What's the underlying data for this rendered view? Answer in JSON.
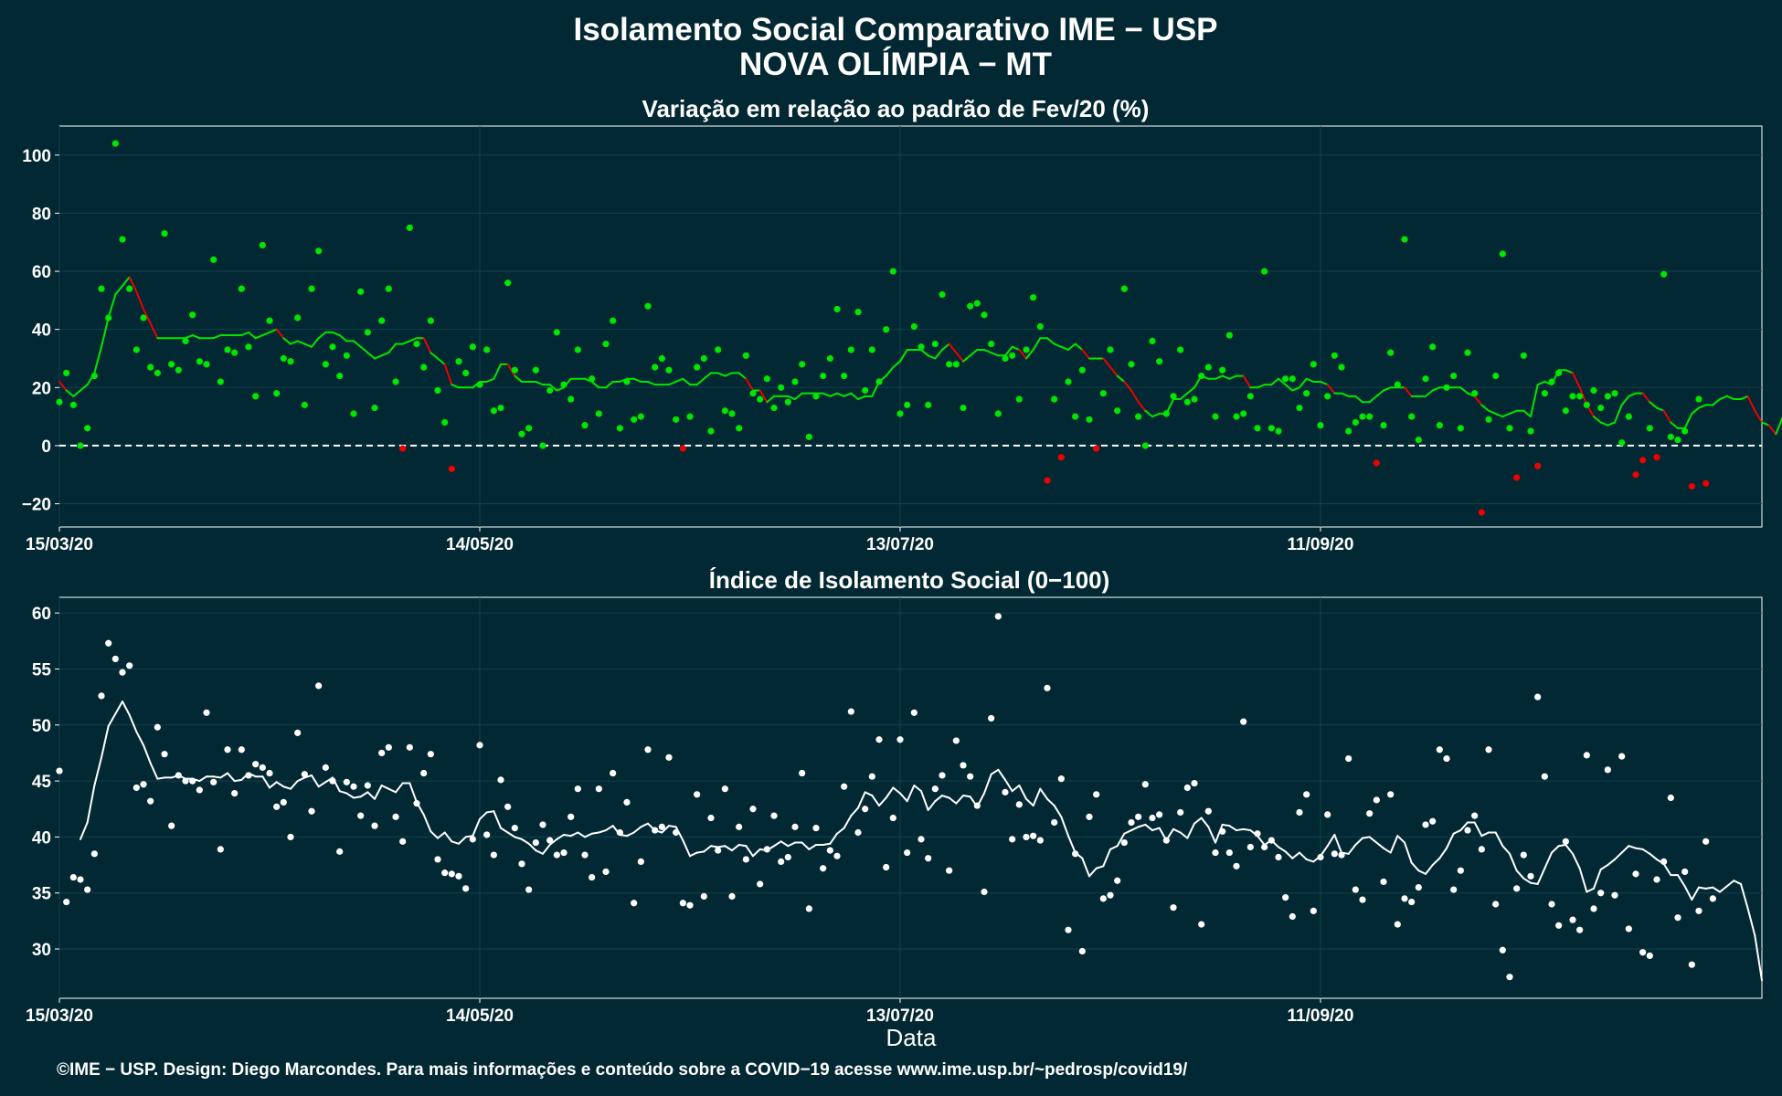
{
  "header": {
    "title": "Isolamento Social Comparativo IME − USP",
    "subtitle": "NOVA OLÍMPIA − MT"
  },
  "footer": "©IME − USP. Design: Diego Marcondes. Para mais informações e conteúdo sobre a COVID−19 acesse www.ime.usp.br/~pedrosp/covid19/",
  "colors": {
    "background": "#022833",
    "positive": "#00e600",
    "negative": "#ee0000",
    "index": "#ffffff",
    "grid": "#11404d"
  },
  "chart_data": [
    {
      "type": "scatter",
      "title": "Variação em relação ao padrão de Fev/20 (%)",
      "xlabel": "",
      "ylabel": "",
      "xlim": [
        "2020-03-15",
        "2020-11-13"
      ],
      "ylim": [
        -28,
        110
      ],
      "yticks": [
        -20,
        0,
        20,
        40,
        60,
        80,
        100
      ],
      "xticks": [
        "15/03/20",
        "14/05/20",
        "13/07/20",
        "11/09/20"
      ],
      "grid": true,
      "reference_line": 0,
      "start_date": "2020-03-15",
      "points": [
        15,
        25,
        14,
        0,
        6,
        24,
        54,
        44,
        104,
        71,
        54,
        33,
        44,
        27,
        25,
        73,
        28,
        26,
        36,
        45,
        29,
        28,
        64,
        22,
        33,
        32,
        54,
        34,
        17,
        69,
        43,
        18,
        30,
        29,
        44,
        14,
        54,
        67,
        28,
        34,
        24,
        31,
        11,
        53,
        39,
        13,
        43,
        54,
        22,
        -1,
        75,
        35,
        27,
        43,
        19,
        8,
        -8,
        29,
        25,
        34,
        21,
        33,
        12,
        13,
        56,
        26,
        4,
        6,
        26,
        0,
        19,
        39,
        21,
        16,
        33,
        7,
        23,
        11,
        35,
        43,
        6,
        22,
        9,
        10,
        48,
        27,
        30,
        26,
        9,
        -1,
        10,
        27,
        30,
        5,
        33,
        12,
        11,
        6,
        31,
        18,
        16,
        23,
        13,
        20,
        15,
        22,
        28,
        3,
        17,
        24,
        30,
        47,
        24,
        33,
        46,
        19,
        33,
        22,
        40,
        60,
        11,
        14,
        41,
        34,
        14,
        35,
        52,
        28,
        28,
        13,
        48,
        49,
        45,
        35,
        11,
        30,
        31,
        16,
        33,
        51,
        41,
        -12,
        16,
        -4,
        22,
        10,
        26,
        9,
        -1,
        18,
        33,
        12,
        54,
        28,
        10,
        0,
        36,
        29,
        11,
        17,
        33,
        15,
        16,
        24,
        27,
        10,
        26,
        38,
        10,
        11,
        17,
        6,
        60,
        6,
        5,
        23,
        23,
        13,
        18,
        28,
        7,
        17,
        31,
        27,
        5,
        8,
        10,
        10,
        -6,
        7,
        32,
        21,
        71,
        10,
        2,
        23,
        34,
        7,
        20,
        24,
        6,
        32,
        18,
        -23,
        9,
        24,
        66,
        6,
        -11,
        31,
        5,
        -7,
        18,
        22,
        25,
        12,
        17,
        17,
        14,
        19,
        13,
        17,
        18,
        1,
        10,
        -10,
        -5,
        6,
        -4,
        59,
        3,
        2,
        5,
        -14,
        16,
        -13
      ],
      "rolling_mean": [
        22,
        19,
        17,
        19,
        21,
        25,
        34,
        44,
        52,
        55,
        58,
        53,
        47,
        42,
        37,
        37,
        37,
        37,
        37,
        38,
        37,
        37,
        37,
        38,
        38,
        38,
        38,
        39,
        37,
        38,
        39,
        40,
        37,
        35,
        36,
        35,
        34,
        37,
        39,
        39,
        38,
        36,
        36,
        34,
        32,
        30,
        31,
        32,
        35,
        35,
        36,
        37,
        37,
        32,
        30,
        28,
        21,
        20,
        20,
        20,
        22,
        22,
        23,
        28,
        28,
        24,
        22,
        22,
        22,
        21,
        21,
        19,
        20,
        23,
        23,
        23,
        22,
        20,
        20,
        22,
        22,
        23,
        23,
        22,
        22,
        21,
        21,
        21,
        22,
        23,
        21,
        21,
        23,
        25,
        25,
        24,
        25,
        25,
        23,
        19,
        19,
        15,
        17,
        17,
        17,
        16,
        18,
        18,
        18,
        18,
        17,
        18,
        17,
        18,
        16,
        17,
        17,
        22,
        24,
        27,
        29,
        33,
        33,
        33,
        31,
        30,
        33,
        35,
        32,
        29,
        31,
        33,
        33,
        32,
        31,
        31,
        34,
        33,
        30,
        33,
        37,
        37,
        35,
        34,
        33,
        35,
        33,
        30,
        30,
        30,
        27,
        24,
        22,
        19,
        15,
        12,
        10,
        11,
        11,
        16,
        16,
        18,
        20,
        24,
        23,
        23,
        24,
        23,
        24,
        24,
        20,
        20,
        21,
        21,
        23,
        21,
        19,
        20,
        23,
        22,
        22,
        21,
        18,
        18,
        17,
        17,
        15,
        15,
        17,
        19,
        20,
        20,
        20,
        17,
        17,
        17,
        19,
        20,
        20,
        20,
        20,
        18,
        17,
        14,
        12,
        11,
        10,
        11,
        12,
        12,
        10,
        21,
        22,
        21,
        26,
        26,
        25,
        20,
        14,
        10,
        8,
        7,
        8,
        14,
        17,
        18,
        18,
        15,
        13,
        12,
        8,
        6,
        6,
        11,
        13,
        14,
        14,
        16,
        17,
        16,
        16,
        17,
        12,
        8,
        7,
        4,
        10,
        7,
        7,
        8,
        7,
        8,
        10,
        9
      ]
    },
    {
      "type": "scatter",
      "title": "Índice de Isolamento Social (0−100)",
      "xlabel": "Data",
      "ylabel": "",
      "xlim": [
        "2020-03-15",
        "2020-11-13"
      ],
      "ylim": [
        25.6,
        61.4
      ],
      "yticks": [
        30,
        35,
        40,
        45,
        50,
        55,
        60
      ],
      "xticks": [
        "15/03/20",
        "14/05/20",
        "13/07/20",
        "11/09/20"
      ],
      "grid": true,
      "start_date": "2020-03-15",
      "points": [
        45.9,
        34.2,
        36.4,
        36.2,
        35.3,
        38.5,
        52.6,
        57.3,
        55.9,
        54.7,
        55.3,
        44.4,
        44.7,
        43.2,
        49.8,
        47.4,
        41.0,
        45.5,
        45.0,
        45.0,
        44.2,
        51.1,
        44.9,
        38.9,
        47.8,
        43.9,
        47.8,
        45.5,
        46.5,
        46.2,
        45.7,
        42.7,
        43.1,
        40.0,
        49.3,
        45.6,
        42.3,
        53.5,
        46.2,
        45.0,
        38.7,
        44.9,
        44.5,
        41.9,
        44.6,
        41.0,
        47.5,
        48.0,
        41.8,
        39.6,
        48.0,
        43.0,
        45.7,
        47.4,
        38.0,
        36.8,
        36.7,
        36.5,
        35.4,
        39.8,
        48.2,
        40.2,
        38.4,
        45.1,
        42.7,
        40.8,
        37.6,
        35.3,
        39.5,
        41.1,
        39.7,
        38.4,
        38.6,
        41.8,
        44.3,
        38.4,
        36.4,
        44.3,
        36.9,
        45.7,
        40.4,
        43.1,
        34.1,
        37.8,
        47.8,
        40.6,
        40.9,
        47.1,
        40.4,
        34.1,
        33.9,
        43.8,
        34.7,
        41.7,
        38.8,
        44.3,
        34.7,
        40.9,
        38.0,
        42.5,
        35.8,
        38.9,
        41.9,
        37.8,
        38.2,
        40.9,
        45.7,
        33.6,
        40.8,
        37.2,
        38.8,
        38.3,
        44.5,
        51.2,
        40.4,
        42.5,
        45.4,
        48.7,
        37.3,
        41.7,
        48.7,
        38.6,
        51.1,
        39.8,
        38.1,
        44.3,
        45.5,
        37.0,
        48.6,
        46.4,
        45.4,
        42.8,
        35.1,
        50.6,
        59.7,
        44.0,
        39.8,
        42.9,
        40.0,
        40.1,
        39.7,
        53.3,
        41.3,
        45.2,
        31.7,
        38.5,
        29.8,
        41.8,
        43.8,
        34.5,
        34.8,
        36.1,
        39.5,
        41.3,
        41.8,
        44.7,
        41.7,
        42.0,
        39.7,
        33.7,
        42.2,
        44.4,
        44.8,
        32.2,
        42.3,
        38.6,
        40.5,
        38.6,
        37.4,
        50.3,
        39.1,
        40.3,
        39.1,
        39.7,
        38.2,
        34.6,
        32.9,
        42.2,
        43.8,
        33.4,
        38.2,
        42.0,
        38.5,
        38.4,
        47.0,
        35.3,
        34.4,
        42.1,
        43.3,
        36.0,
        43.8,
        32.2,
        34.5,
        34.2,
        35.5,
        41.1,
        41.4,
        47.8,
        47.0,
        35.3,
        37.0,
        40.6,
        41.9,
        38.9,
        47.8,
        34.0,
        29.9,
        27.5,
        35.4,
        38.4,
        36.5,
        52.5,
        45.4,
        34.0,
        32.1,
        39.6,
        32.6,
        31.7,
        47.3,
        33.6,
        35.0,
        46.0,
        34.8,
        47.2,
        31.8,
        36.7,
        29.7,
        29.4,
        36.2,
        37.8,
        43.5,
        32.8,
        36.9,
        28.6,
        33.4,
        39.6,
        34.5
      ],
      "rolling_mean": [
        null,
        null,
        null,
        39.8,
        41.3,
        44.6,
        47.1,
        49.9,
        51.0,
        52.1,
        50.9,
        49.4,
        48.2,
        46.6,
        45.2,
        45.3,
        45.3,
        45.5,
        45.2,
        45.2,
        45.0,
        45.4,
        45.4,
        45.3,
        45.7,
        45.0,
        45.1,
        45.7,
        45.4,
        45.4,
        44.4,
        44.9,
        44.5,
        44.3,
        45.0,
        45.3,
        45.5,
        44.5,
        44.9,
        45.3,
        44.1,
        43.9,
        43.5,
        43.6,
        44.0,
        43.4,
        44.6,
        44.3,
        44.0,
        44.8,
        44.8,
        43.1,
        42.0,
        40.5,
        39.9,
        40.4,
        39.6,
        39.4,
        40.0,
        40.1,
        41.6,
        42.2,
        42.3,
        40.8,
        40.4,
        40.0,
        39.8,
        39.4,
        38.8,
        38.5,
        39.3,
        39.8,
        40.2,
        40.1,
        40.4,
        40.0,
        40.3,
        40.4,
        40.6,
        41.0,
        40.2,
        40.1,
        40.4,
        40.9,
        41.2,
        40.6,
        40.4,
        41.0,
        40.9,
        39.7,
        38.3,
        38.6,
        38.7,
        39.2,
        39.1,
        39.2,
        38.8,
        39.3,
        39.2,
        38.3,
        38.9,
        38.8,
        39.2,
        39.6,
        39.2,
        39.5,
        39.5,
        38.9,
        39.3,
        39.3,
        39.4,
        40.3,
        40.8,
        41.9,
        42.6,
        44.0,
        43.7,
        42.8,
        43.5,
        44.4,
        43.9,
        43.2,
        44.6,
        44.1,
        42.4,
        43.2,
        43.7,
        43.5,
        43.0,
        43.7,
        43.6,
        42.7,
        43.9,
        45.6,
        46.0,
        45.1,
        44.1,
        44.6,
        43.4,
        42.8,
        44.3,
        43.4,
        42.8,
        41.8,
        40.1,
        38.6,
        38.1,
        36.5,
        37.2,
        37.4,
        38.9,
        39.2,
        40.3,
        40.6,
        40.9,
        41.1,
        40.6,
        40.8,
        39.7,
        40.7,
        40.4,
        39.9,
        41.2,
        41.7,
        40.9,
        39.5,
        41.1,
        41.0,
        40.6,
        40.7,
        40.6,
        40.1,
        39.3,
        39.7,
        39.1,
        38.7,
        38.1,
        38.6,
        38.0,
        37.8,
        38.3,
        39.2,
        40.2,
        38.6,
        38.5,
        39.3,
        39.9,
        40.0,
        39.5,
        39.0,
        38.6,
        40.1,
        39.5,
        37.7,
        37.0,
        36.7,
        37.5,
        38.1,
        39.0,
        40.3,
        40.6,
        41.3,
        41.3,
        40.1,
        40.4,
        40.4,
        39.2,
        38.5,
        37.0,
        36.3,
        35.9,
        35.8,
        37.2,
        38.6,
        39.2,
        39.3,
        38.5,
        37.2,
        35.1,
        35.4,
        37.1,
        37.5,
        38.0,
        38.6,
        39.2,
        39.0,
        38.9,
        38.5,
        38.0,
        37.6,
        36.6,
        36.6,
        35.6,
        34.4,
        35.5,
        35.4,
        35.5,
        35.1,
        35.6,
        36.1,
        35.8,
        33.6,
        31.2,
        27.2
      ]
    }
  ]
}
